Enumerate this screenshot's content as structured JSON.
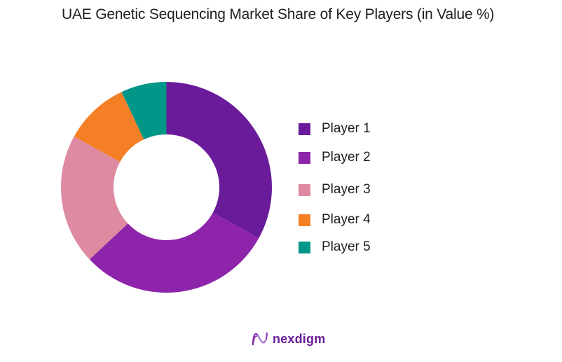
{
  "title": "UAE Genetic Sequencing Market Share of Key Players (in Value %)",
  "chart_data": {
    "type": "pie",
    "variant": "donut",
    "title": "UAE Genetic Sequencing Market Share of Key Players (in Value %)",
    "categories": [
      "Player 1",
      "Player 2",
      "Player 3",
      "Player 4",
      "Player 5"
    ],
    "values": [
      33,
      30,
      20,
      10,
      7
    ],
    "unit": "%",
    "colors": [
      "#6a1b9a",
      "#8e24aa",
      "#de8aa0",
      "#f47f24",
      "#009688"
    ],
    "start_angle_deg": 0,
    "direction": "clockwise",
    "legend_position": "right",
    "data_labels": false
  },
  "legend": {
    "items": [
      {
        "label": "Player 1",
        "color": "#6a1b9a"
      },
      {
        "label": "Player 2",
        "color": "#8e24aa"
      },
      {
        "label": "Player 3",
        "color": "#de8aa0"
      },
      {
        "label": "Player 4",
        "color": "#f47f24"
      },
      {
        "label": "Player 5",
        "color": "#009688"
      }
    ]
  },
  "brand": {
    "name": "nexdigm",
    "icon": "nexdigm-wave-logo-icon"
  }
}
